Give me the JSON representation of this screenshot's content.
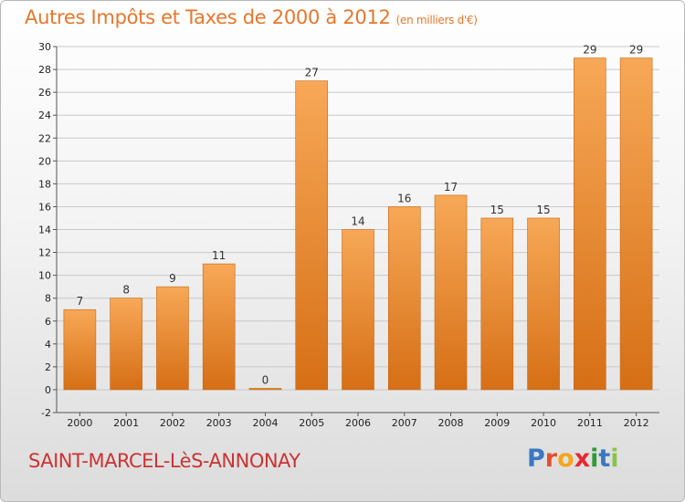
{
  "header": {
    "title": "Autres Impôts et Taxes de 2000 à 2012",
    "unit": "(en milliers d'€)"
  },
  "footer": {
    "town": "SAINT-MARCEL-LèS-ANNONAY",
    "logo_letters": [
      "P",
      "r",
      "o",
      "x",
      "i",
      "t",
      "i"
    ]
  },
  "colors": {
    "bar_light": "#f7a857",
    "bar_dark": "#d66f16",
    "title": "#e8762a",
    "town": "#cc3333",
    "grid": "#c8c8c8"
  },
  "chart_data": {
    "type": "bar",
    "title": "Autres Impôts et Taxes de 2000 à 2012",
    "subtitle": "(en milliers d'€)",
    "categories": [
      "2000",
      "2001",
      "2002",
      "2003",
      "2004",
      "2005",
      "2006",
      "2007",
      "2008",
      "2009",
      "2010",
      "2011",
      "2012"
    ],
    "values": [
      7,
      8,
      9,
      11,
      0,
      27,
      14,
      16,
      17,
      15,
      15,
      29,
      29
    ],
    "ylim": [
      -2,
      30
    ],
    "yticks": [
      -2,
      0,
      2,
      4,
      6,
      8,
      10,
      12,
      14,
      16,
      18,
      20,
      22,
      24,
      26,
      28,
      30
    ],
    "grid": true,
    "xlabel": "",
    "ylabel": ""
  }
}
